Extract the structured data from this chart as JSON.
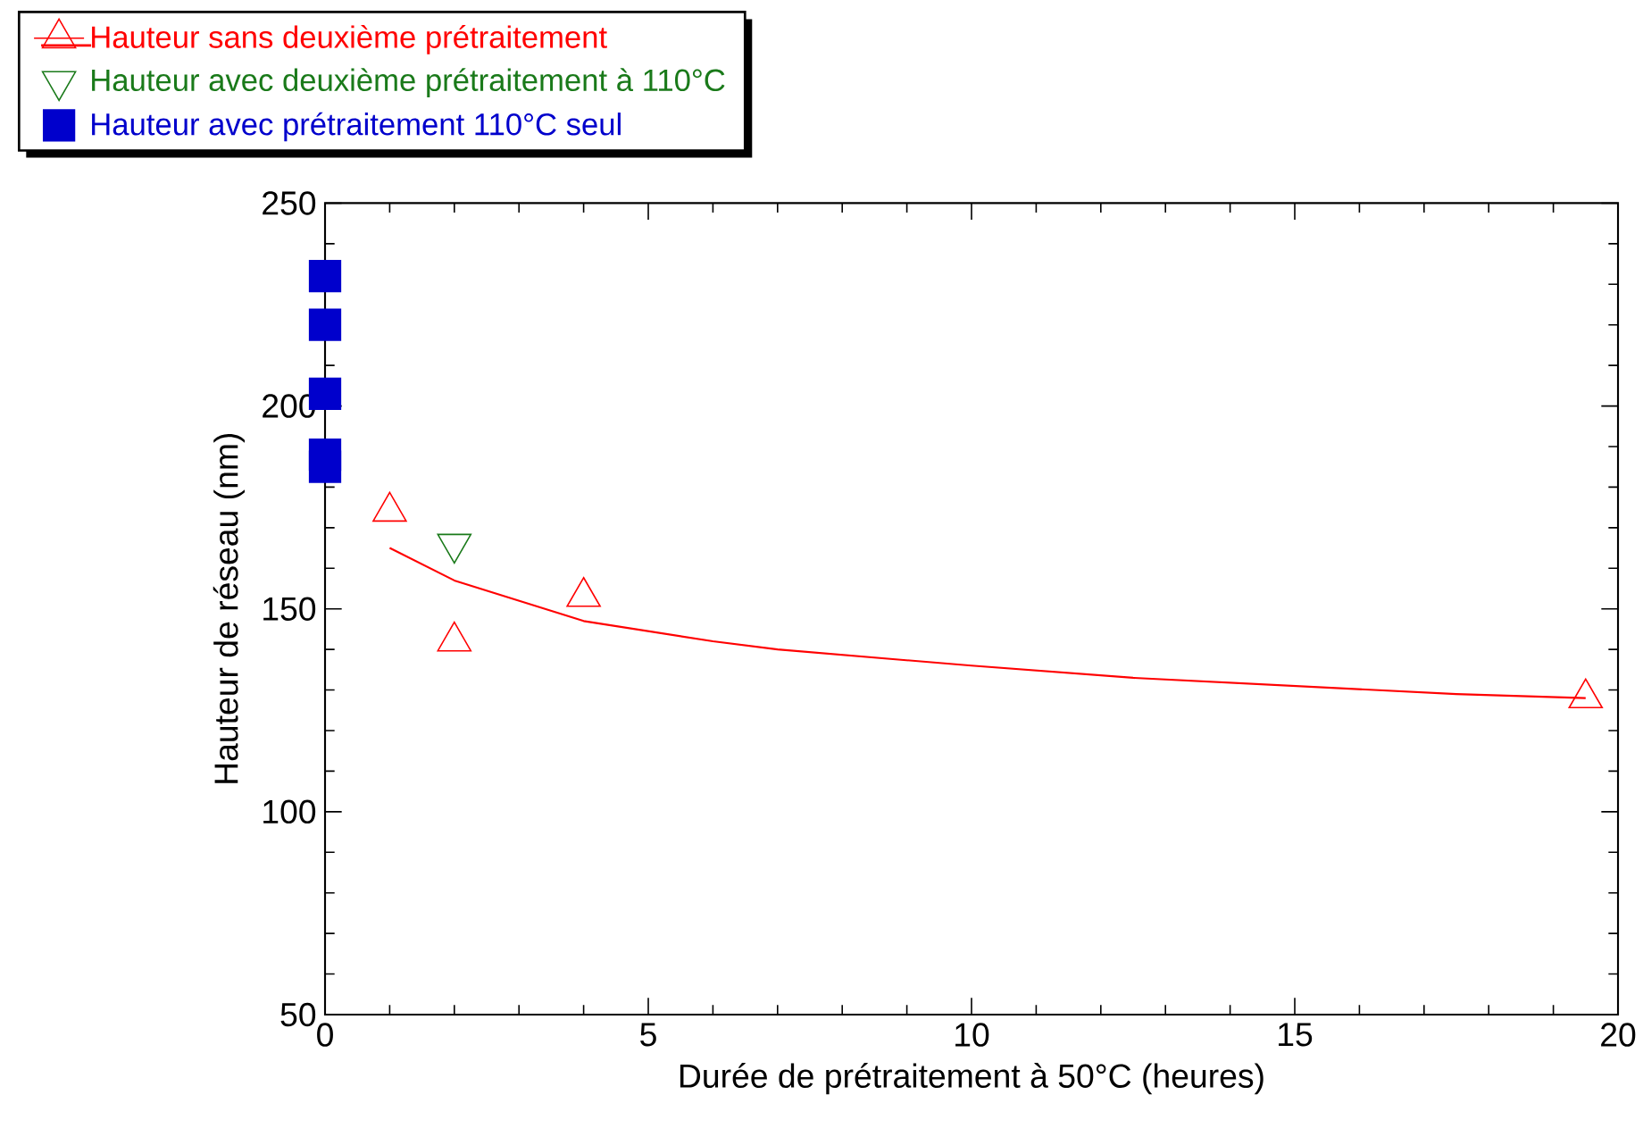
{
  "chart_data": {
    "type": "scatter",
    "xlabel": "Durée de prétraitement à 50°C (heures)",
    "ylabel": "Hauteur de réseau (nm)",
    "xlim": [
      0,
      20
    ],
    "xticks": [
      0,
      5,
      10,
      15,
      20
    ],
    "ylim": [
      50,
      250
    ],
    "yticks": [
      50,
      100,
      150,
      200,
      250
    ],
    "grid": false,
    "legend": "top left",
    "series": [
      {
        "name": "Hauteur sans deuxième prétraitement",
        "marker": "triangle",
        "color": "#ff0000",
        "x": [
          1,
          2,
          4,
          19.5
        ],
        "values": [
          174,
          142,
          153,
          128
        ]
      },
      {
        "type": "line",
        "marker": "none",
        "color": "#ff0000",
        "x": [
          1,
          2,
          4,
          6,
          7,
          10,
          12.5,
          15,
          17.5,
          19.5
        ],
        "values": [
          165,
          157,
          147,
          142,
          140,
          136,
          133,
          131,
          129,
          128
        ]
      },
      {
        "name": "Hauteur avec deuxième prétraitement à 110°C",
        "type": "scatter",
        "marker": "triangle-down",
        "color": "#1a7a1a",
        "x": [
          2
        ],
        "values": [
          166
        ]
      },
      {
        "name": "Hauteur avec prétraitement 110°C seul",
        "type": "scatter",
        "marker": "square",
        "color": "#0000cc",
        "x": [
          0,
          0,
          0,
          0,
          0
        ],
        "values": [
          232,
          220,
          203,
          188,
          185
        ]
      }
    ]
  }
}
